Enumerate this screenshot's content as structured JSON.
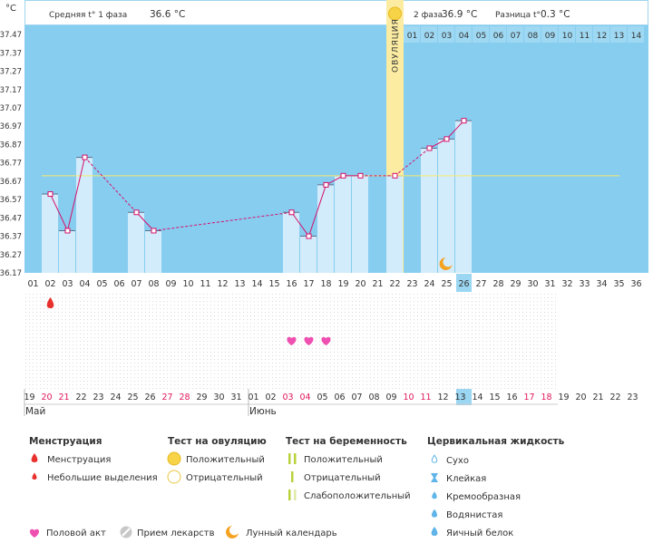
{
  "chart_data": {
    "type": "bar",
    "unit": "°C",
    "y_ticks": [
      "36.17",
      "36.27",
      "36.37",
      "36.47",
      "36.57",
      "36.67",
      "36.77",
      "36.87",
      "36.97",
      "37.07",
      "37.17",
      "37.27",
      "37.37",
      "37.47"
    ],
    "ylim": [
      36.17,
      37.52
    ],
    "cycle_days": [
      "01",
      "02",
      "03",
      "04",
      "05",
      "06",
      "07",
      "08",
      "09",
      "10",
      "11",
      "12",
      "13",
      "14",
      "15",
      "16",
      "17",
      "18",
      "19",
      "20",
      "21",
      "22",
      "23",
      "24",
      "25",
      "26",
      "27",
      "28",
      "29",
      "30",
      "31",
      "32",
      "33",
      "34",
      "35",
      "36"
    ],
    "dates": [
      "19",
      "20",
      "21",
      "22",
      "23",
      "24",
      "25",
      "26",
      "27",
      "28",
      "29",
      "30",
      "31",
      "01",
      "02",
      "03",
      "04",
      "05",
      "06",
      "07",
      "08",
      "09",
      "10",
      "11",
      "12",
      "13",
      "14",
      "15",
      "16",
      "17",
      "18",
      "19",
      "20",
      "21",
      "22",
      "23"
    ],
    "red_dates_idx": [
      1,
      2,
      8,
      9,
      15,
      16,
      22,
      23,
      29,
      30
    ],
    "today_index": 25,
    "months": [
      {
        "label": "Май",
        "start_index": 0
      },
      {
        "label": "Июнь",
        "start_index": 13
      }
    ],
    "temperatures": [
      {
        "day": 2,
        "value": 36.6
      },
      {
        "day": 3,
        "value": 36.4
      },
      {
        "day": 4,
        "value": 36.8
      },
      {
        "day": 7,
        "value": 36.5
      },
      {
        "day": 8,
        "value": 36.4
      },
      {
        "day": 16,
        "value": 36.5
      },
      {
        "day": 17,
        "value": 36.37
      },
      {
        "day": 18,
        "value": 36.65
      },
      {
        "day": 19,
        "value": 36.7
      },
      {
        "day": 20,
        "value": 36.7
      },
      {
        "day": 22,
        "value": 36.7
      },
      {
        "day": 24,
        "value": 36.85
      },
      {
        "day": 25,
        "value": 36.9
      },
      {
        "day": 26,
        "value": 37.0
      }
    ],
    "coverline": 36.7,
    "ovulation_day": 22,
    "ovulation_label": "ОВУЛЯЦИЯ",
    "phase1": {
      "label": "Средняя t° 1 фаза",
      "value": "36.6 °C"
    },
    "phase2": {
      "label": "2 фаза",
      "value": "36.9 °C",
      "diff_label": "Разница t°",
      "diff_value": "0.3 °C"
    },
    "phase2_days": [
      "01",
      "02",
      "03",
      "04",
      "05",
      "06",
      "07",
      "08",
      "09",
      "10",
      "11",
      "12",
      "13",
      "14"
    ],
    "moon_day": 25,
    "menstruation_days": [
      2
    ],
    "intercourse_days": [
      16,
      17,
      18
    ]
  },
  "colors": {
    "chart_bg": "#87cdf0",
    "bar_fill": "#d2ecfb",
    "line": "#d6106a",
    "ovulation": "#fbeca2",
    "coverline": "#f7e96e",
    "menstruation": "#e8312d",
    "heart": "#ee4fb0",
    "moon": "#f5a21f",
    "red_date": "#e0185a",
    "today": "#9bd6f2",
    "grid_dot": "#dddddd",
    "pregnancy_pos": "#b8d23c",
    "drop_blue": "#5fb4e8"
  },
  "legend": {
    "menstruation": {
      "title": "Менструация",
      "items": [
        "Менструация",
        "Небольшие выделения"
      ]
    },
    "ovulation_test": {
      "title": "Тест на овуляцию",
      "items": [
        "Положительный",
        "Отрицательный"
      ]
    },
    "pregnancy_test": {
      "title": "Тест на беременность",
      "items": [
        "Положительный",
        "Отрицательный",
        "Слабоположительный"
      ]
    },
    "cervical": {
      "title": "Цервикальная жидкость",
      "items": [
        "Сухо",
        "Клейкая",
        "Кремообразная",
        "Водянистая",
        "Яичный белок"
      ]
    },
    "bottom": [
      "Половой акт",
      "Прием лекарств",
      "Лунный календарь"
    ]
  }
}
